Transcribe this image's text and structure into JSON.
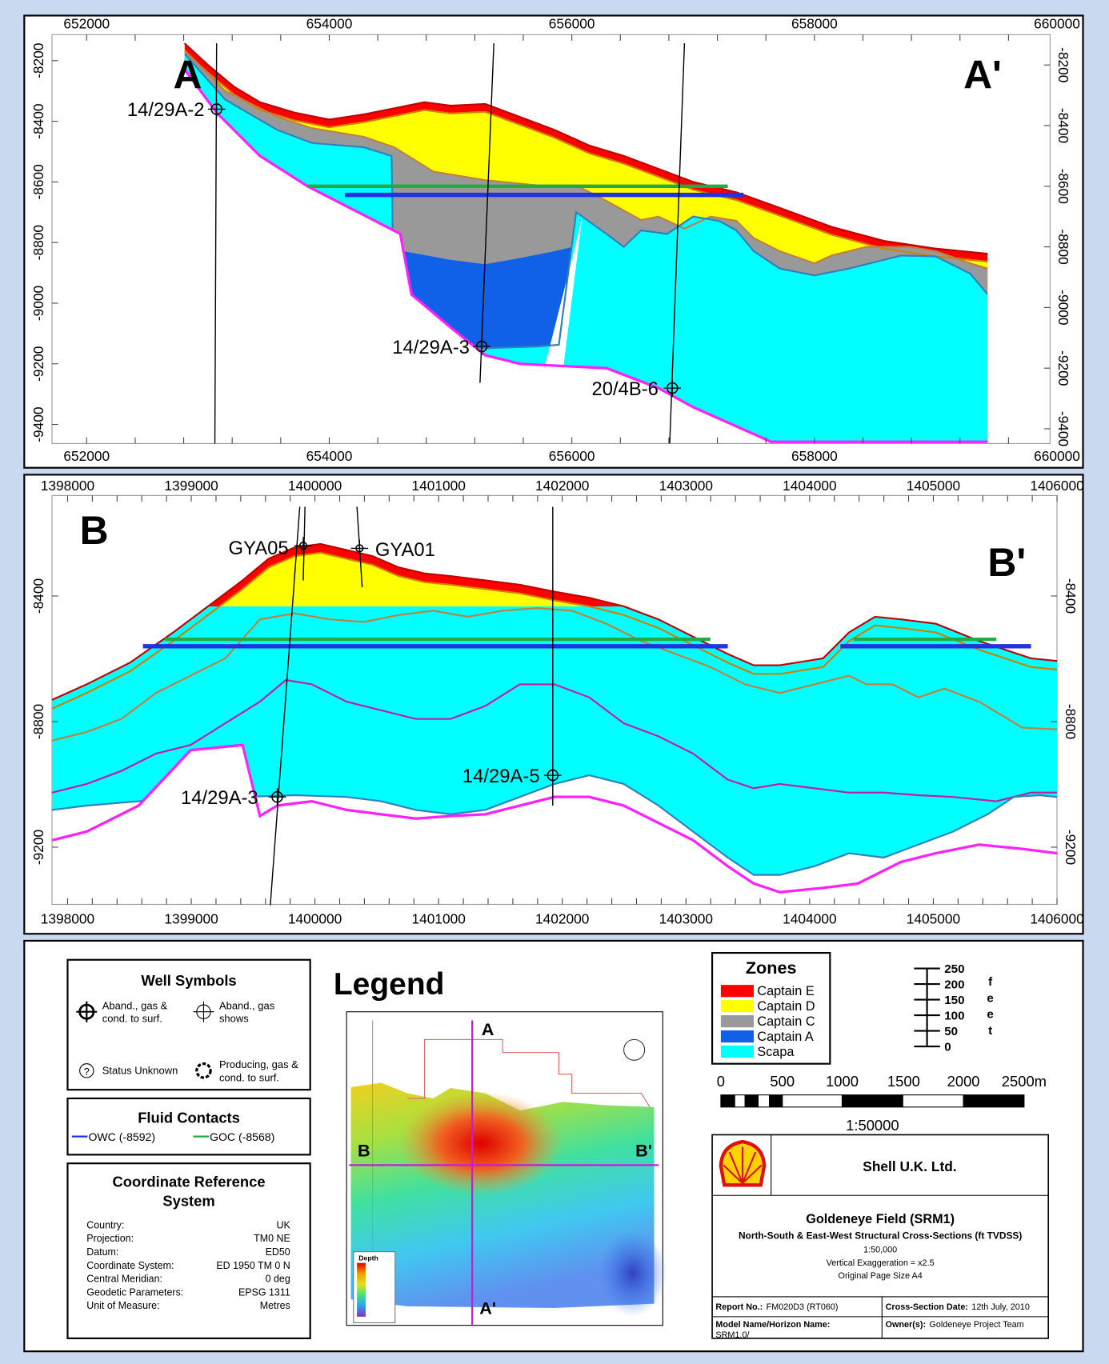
{
  "section_a": {
    "corner_left": "A",
    "corner_right": "A'",
    "x_ticks": [
      "652000",
      "654000",
      "656000",
      "658000",
      "660000"
    ],
    "y_ticks_left": [
      "-8200",
      "-8400",
      "-8600",
      "-8800",
      "-9000",
      "-9200",
      "-9400"
    ],
    "y_ticks_right": [
      "-8200",
      "-8400",
      "-8600",
      "-8800",
      "-9000",
      "-9200",
      "-9400"
    ],
    "wells": [
      "14/29A-2",
      "14/29A-3",
      "20/4B-6"
    ]
  },
  "section_b": {
    "corner_left": "B",
    "corner_right": "B'",
    "x_ticks": [
      "1398000",
      "1399000",
      "1400000",
      "1401000",
      "1402000",
      "1403000",
      "1404000",
      "1405000",
      "1406000"
    ],
    "y_ticks_left": [
      "-8400",
      "-8800",
      "-9200"
    ],
    "y_ticks_right": [
      "-8400",
      "-8800",
      "-9200"
    ],
    "wells": [
      "GYA05",
      "GYA01",
      "14/29A-3",
      "14/29A-5"
    ]
  },
  "legend": {
    "title": "Legend",
    "well_symbols": {
      "title": "Well Symbols",
      "items": [
        {
          "lines": [
            "Aband., gas &",
            "cond. to surf."
          ]
        },
        {
          "lines": [
            "Aband., gas",
            "shows"
          ]
        },
        {
          "lines": [
            "Status Unknown"
          ]
        },
        {
          "lines": [
            "Producing, gas &",
            "cond. to surf."
          ]
        }
      ]
    },
    "fluid_contacts": {
      "title": "Fluid Contacts",
      "items": [
        {
          "name": "OWC (-8592)",
          "color": "#2233dd"
        },
        {
          "name": "GOC (-8568)",
          "color": "#22aa44"
        }
      ]
    },
    "crs": {
      "title_lines": [
        "Coordinate Reference",
        "System"
      ],
      "rows": [
        [
          "Country:",
          "UK"
        ],
        [
          "Projection:",
          "TM0 NE"
        ],
        [
          "Datum:",
          "ED50"
        ],
        [
          "Coordinate System:",
          "ED 1950 TM 0 N"
        ],
        [
          "Central Meridian:",
          "0 deg"
        ],
        [
          "Geodetic Parameters:",
          "EPSG 1311"
        ],
        [
          "Unit of Measure:",
          "Metres"
        ]
      ]
    },
    "zones": {
      "title": "Zones",
      "items": [
        {
          "name": "Captain E",
          "color": "#ff0000"
        },
        {
          "name": "Captain D",
          "color": "#ffff00"
        },
        {
          "name": "Captain C",
          "color": "#999999"
        },
        {
          "name": "Captain A",
          "color": "#1060e8"
        },
        {
          "name": "Scapa",
          "color": "#00ffff"
        }
      ]
    },
    "feet_scale": {
      "ticks": [
        "250",
        "200",
        "150",
        "100",
        "50",
        "0"
      ],
      "unit": "feet"
    },
    "metre_scale": {
      "ticks": [
        "0",
        "500",
        "1000",
        "1500",
        "2000",
        "2500m"
      ],
      "ratio": "1:50000"
    },
    "map": {
      "labels": [
        "A",
        "A'",
        "B",
        "B'"
      ],
      "depth_title": "Depth"
    }
  },
  "title_block": {
    "company": "Shell U.K. Ltd.",
    "field": "Goldeneye Field (SRM1)",
    "subtitle": "North-South & East-West Structural Cross-Sections (ft TVDSS)",
    "scale": "1:50,000",
    "exaggeration": "Vertical Exaggeration = x2.5",
    "page_size": "Original Page Size A4",
    "report_label": "Report No.:",
    "report_value": "FM020D3 (RT060)",
    "date_label": "Cross-Section Date:",
    "date_value": "12th July, 2010",
    "model_label": "Model Name/Horizon Name:",
    "model_value": "SRM1.0/",
    "owner_label": "Owner(s):",
    "owner_value": "Goldeneye Project Team"
  }
}
